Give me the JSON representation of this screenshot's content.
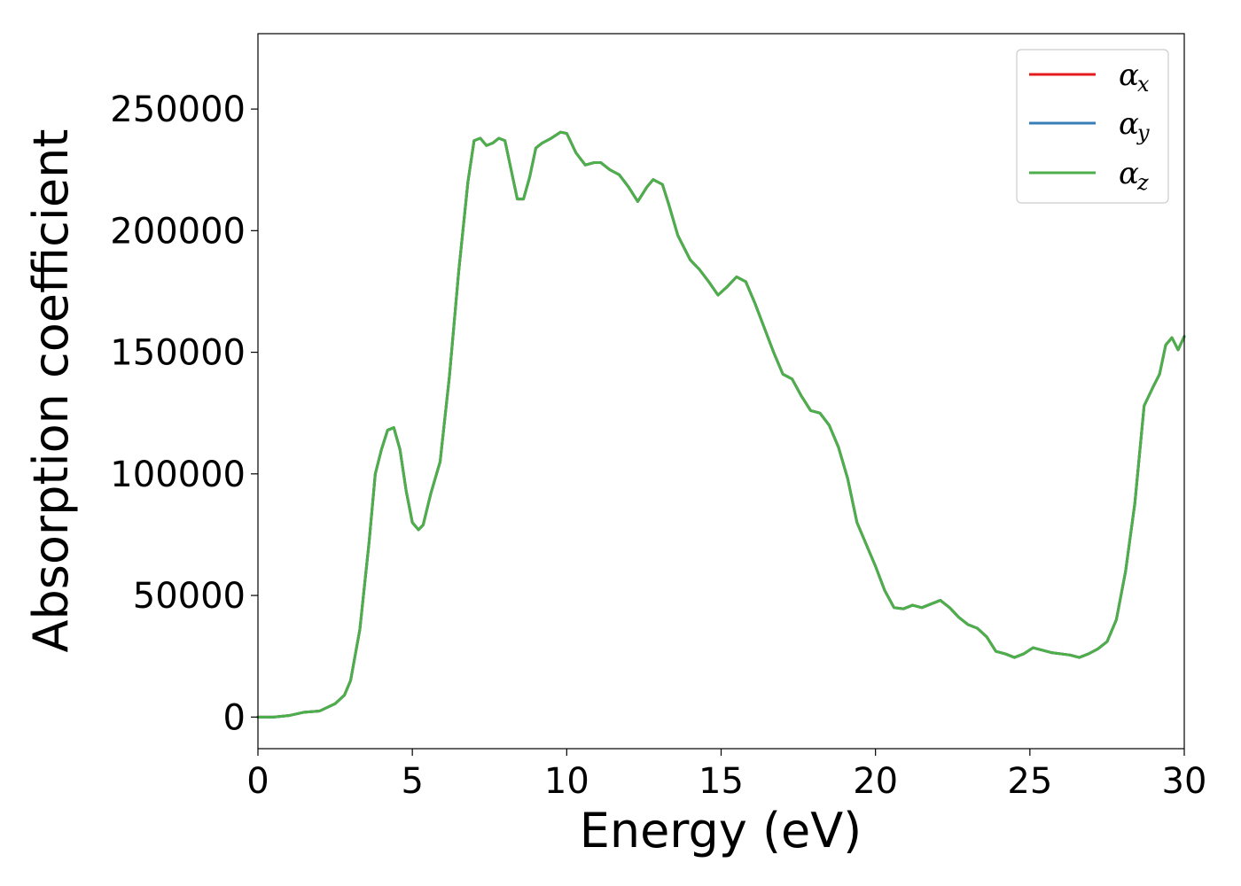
{
  "chart_data": {
    "type": "line",
    "title": "",
    "xlabel": "Energy (eV)",
    "ylabel": "Absorption coefficient",
    "xlim": [
      0,
      30
    ],
    "ylim": [
      -13000,
      281000
    ],
    "xticks": [
      0,
      5,
      10,
      15,
      20,
      25,
      30
    ],
    "yticks": [
      0,
      50000,
      100000,
      150000,
      200000,
      250000
    ],
    "xtick_labels": [
      "0",
      "5",
      "10",
      "15",
      "20",
      "25",
      "30"
    ],
    "ytick_labels": [
      "0",
      "50000",
      "100000",
      "150000",
      "200000",
      "250000"
    ],
    "grid": false,
    "legend": {
      "placement": "top-right",
      "entries": [
        {
          "symbol": "α",
          "subscript": "x",
          "color": "#e41a1c"
        },
        {
          "symbol": "α",
          "subscript": "y",
          "color": "#377eb8"
        },
        {
          "symbol": "α",
          "subscript": "z",
          "color": "#4daf4a"
        }
      ]
    },
    "x": [
      0,
      0.5,
      1.0,
      1.5,
      2.0,
      2.5,
      2.8,
      3.0,
      3.3,
      3.6,
      3.8,
      4.0,
      4.2,
      4.4,
      4.6,
      4.8,
      5.0,
      5.2,
      5.35,
      5.6,
      5.9,
      6.2,
      6.5,
      6.8,
      7.0,
      7.2,
      7.4,
      7.6,
      7.8,
      8.0,
      8.2,
      8.4,
      8.6,
      8.8,
      9.0,
      9.2,
      9.5,
      9.8,
      10.0,
      10.3,
      10.6,
      10.9,
      11.1,
      11.4,
      11.7,
      12.0,
      12.3,
      12.6,
      12.8,
      13.1,
      13.3,
      13.6,
      14.0,
      14.3,
      14.6,
      14.9,
      15.2,
      15.5,
      15.8,
      16.1,
      16.4,
      16.7,
      17.0,
      17.3,
      17.6,
      17.9,
      18.2,
      18.5,
      18.8,
      19.1,
      19.4,
      19.7,
      20.0,
      20.3,
      20.6,
      20.9,
      21.2,
      21.5,
      21.8,
      22.1,
      22.4,
      22.7,
      23.0,
      23.3,
      23.6,
      23.9,
      24.2,
      24.5,
      24.8,
      25.1,
      25.4,
      25.7,
      26.0,
      26.3,
      26.6,
      26.9,
      27.2,
      27.5,
      27.8,
      28.1,
      28.4,
      28.7,
      29.0,
      29.2,
      29.4,
      29.6,
      29.8,
      30.0
    ],
    "series": [
      {
        "name": "αx",
        "color": "#e41a1c",
        "values": [
          0,
          0,
          600,
          2000,
          2500,
          5500,
          9000,
          15000,
          36000,
          72000,
          100000,
          110000,
          118000,
          119000,
          110000,
          93000,
          80000,
          77000,
          79000,
          92000,
          105000,
          140000,
          183000,
          220000,
          237000,
          238000,
          235000,
          236000,
          238000,
          237000,
          225000,
          213000,
          213000,
          222000,
          234000,
          236000,
          238000,
          240500,
          240000,
          232000,
          227000,
          228000,
          228000,
          225000,
          223000,
          218000,
          212000,
          218000,
          221000,
          219000,
          211000,
          198000,
          188000,
          184000,
          179000,
          173500,
          177000,
          181000,
          179000,
          170000,
          160000,
          150000,
          141000,
          139000,
          132000,
          126000,
          125000,
          120000,
          111000,
          98000,
          80000,
          71000,
          62000,
          52000,
          45000,
          44500,
          46000,
          45000,
          46500,
          48000,
          45000,
          41000,
          38000,
          36500,
          33000,
          27000,
          26000,
          24500,
          26000,
          28500,
          27500,
          26500,
          26000,
          25500,
          24500,
          26000,
          28000,
          31000,
          40000,
          60000,
          88000,
          128000,
          136000,
          141000,
          153000,
          156000,
          151000,
          156500
        ]
      },
      {
        "name": "αy",
        "color": "#377eb8",
        "values": [
          0,
          0,
          600,
          2000,
          2500,
          5500,
          9000,
          15000,
          36000,
          72000,
          100000,
          110000,
          118000,
          119000,
          110000,
          93000,
          80000,
          77000,
          79000,
          92000,
          105000,
          140000,
          183000,
          220000,
          237000,
          238000,
          235000,
          236000,
          238000,
          237000,
          225000,
          213000,
          213000,
          222000,
          234000,
          236000,
          238000,
          240500,
          240000,
          232000,
          227000,
          228000,
          228000,
          225000,
          223000,
          218000,
          212000,
          218000,
          221000,
          219000,
          211000,
          198000,
          188000,
          184000,
          179000,
          173500,
          177000,
          181000,
          179000,
          170000,
          160000,
          150000,
          141000,
          139000,
          132000,
          126000,
          125000,
          120000,
          111000,
          98000,
          80000,
          71000,
          62000,
          52000,
          45000,
          44500,
          46000,
          45000,
          46500,
          48000,
          45000,
          41000,
          38000,
          36500,
          33000,
          27000,
          26000,
          24500,
          26000,
          28500,
          27500,
          26500,
          26000,
          25500,
          24500,
          26000,
          28000,
          31000,
          40000,
          60000,
          88000,
          128000,
          136000,
          141000,
          153000,
          156000,
          151000,
          156500
        ]
      },
      {
        "name": "αz",
        "color": "#4daf4a",
        "values": [
          0,
          0,
          600,
          2000,
          2500,
          5500,
          9000,
          15000,
          36000,
          72000,
          100000,
          110000,
          118000,
          119000,
          110000,
          93000,
          80000,
          77000,
          79000,
          92000,
          105000,
          140000,
          183000,
          220000,
          237000,
          238000,
          235000,
          236000,
          238000,
          237000,
          225000,
          213000,
          213000,
          222000,
          234000,
          236000,
          238000,
          240500,
          240000,
          232000,
          227000,
          228000,
          228000,
          225000,
          223000,
          218000,
          212000,
          218000,
          221000,
          219000,
          211000,
          198000,
          188000,
          184000,
          179000,
          173500,
          177000,
          181000,
          179000,
          170000,
          160000,
          150000,
          141000,
          139000,
          132000,
          126000,
          125000,
          120000,
          111000,
          98000,
          80000,
          71000,
          62000,
          52000,
          45000,
          44500,
          46000,
          45000,
          46500,
          48000,
          45000,
          41000,
          38000,
          36500,
          33000,
          27000,
          26000,
          24500,
          26000,
          28500,
          27500,
          26500,
          26000,
          25500,
          24500,
          26000,
          28000,
          31000,
          40000,
          60000,
          88000,
          128000,
          136000,
          141000,
          153000,
          156000,
          151000,
          156500
        ]
      }
    ]
  }
}
